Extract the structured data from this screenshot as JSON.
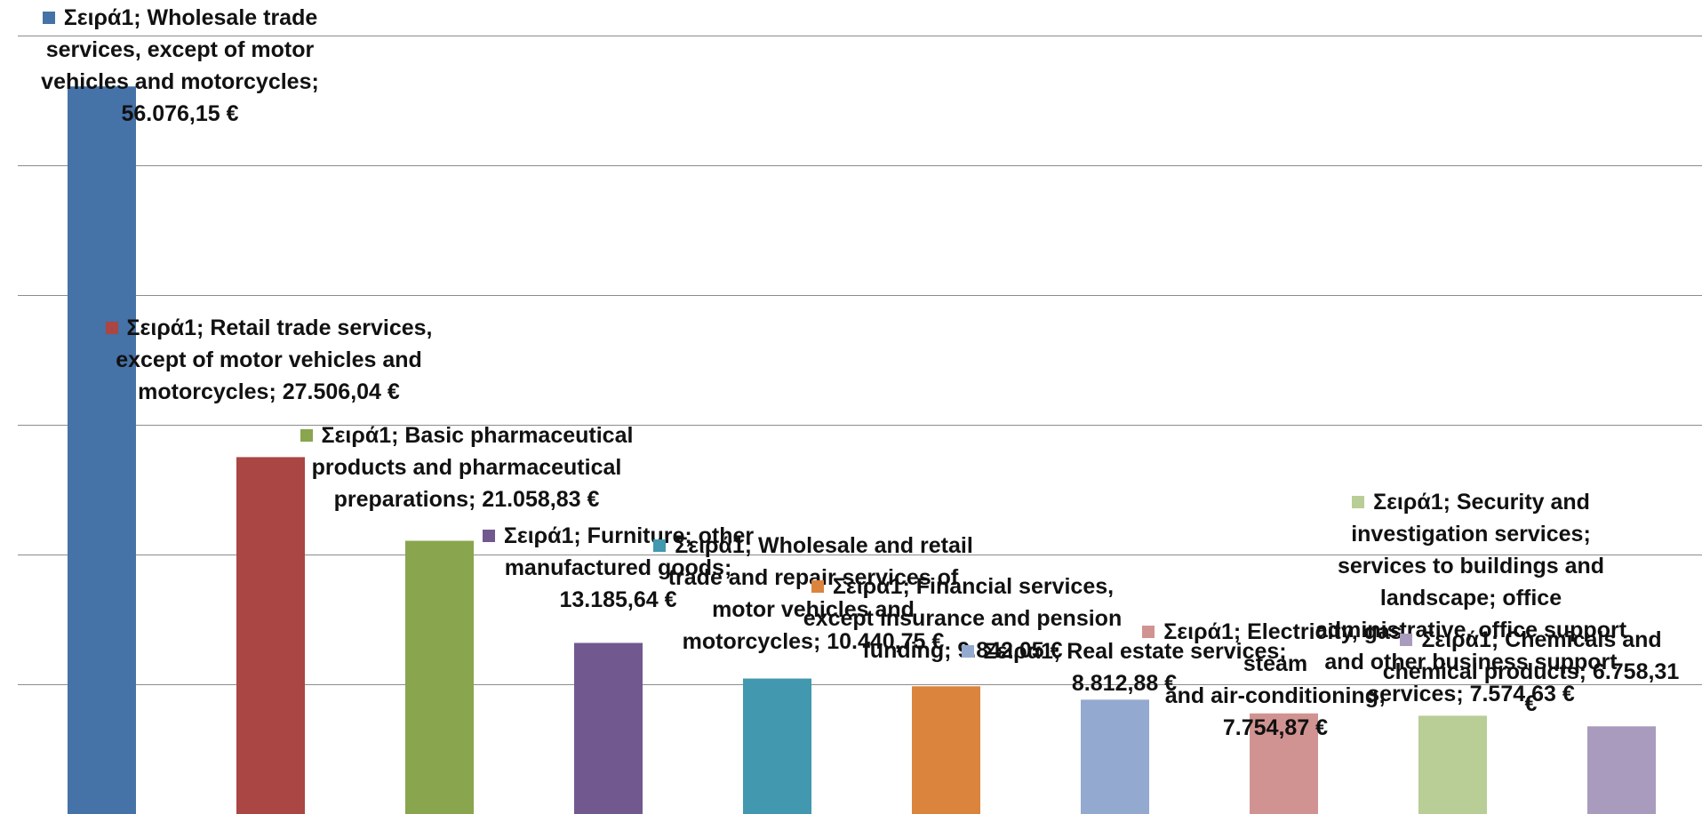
{
  "chart_data": {
    "type": "bar",
    "series_name": "Σειρά1",
    "grid": true,
    "legend": "none",
    "ylim": [
      0,
      60000
    ],
    "ytick_step": 10000,
    "categories": [
      "Wholesale trade services, except of motor vehicles and motorcycles",
      "Retail trade services, except of motor vehicles and motorcycles",
      "Basic pharmaceutical products and pharmaceutical preparations",
      "Furniture; other manufactured goods",
      "Wholesale and retail trade and repair services of motor vehicles and motorcycles",
      "Financial services, except insurance and pension funding",
      "Real estate services",
      "Electricity, gas, steam and air-conditioning",
      "Security and investigation services; services to buildings and landscape; office administrative, office support and other business support services",
      "Chemicals and chemical products"
    ],
    "values": [
      56076.15,
      27506.04,
      21058.83,
      13185.64,
      10440.75,
      9842.05,
      8812.88,
      7754.87,
      7574.63,
      6758.31
    ],
    "colors": [
      "#4572a7",
      "#aa4643",
      "#89a54e",
      "#71588f",
      "#4198af",
      "#db843d",
      "#93a9cf",
      "#d19392",
      "#b9cd96",
      "#a99bbd"
    ],
    "data_labels": [
      [
        "Σειρά1; Wholesale trade",
        "services, except of motor",
        "vehicles and motorcycles;",
        "56.076,15 €"
      ],
      [
        "Σειρά1; Retail trade services,",
        "except of motor vehicles and",
        "motorcycles;  27.506,04 €"
      ],
      [
        "Σειρά1; Basic pharmaceutical",
        "products and pharmaceutical",
        "preparations;  21.058,83 €"
      ],
      [
        "Σειρά1; Furniture; other",
        "manufactured goods;",
        "13.185,64 €"
      ],
      [
        "Σειρά1; Wholesale and retail",
        "trade and repair services of",
        "motor vehicles and",
        "motorcycles;  10.440,75 €"
      ],
      [
        "Σειρά1; Financial services,",
        "except insurance and pension",
        "funding;  9.842,05 €"
      ],
      [
        "Σειρά1; Real estate services;",
        "8.812,88 €"
      ],
      [
        "Σειρά1; Electricity, gas, steam",
        "and air-conditioning;",
        "7.754,87 €"
      ],
      [
        "Σειρά1; Security and",
        "investigation services;",
        "services to buildings and",
        "landscape; office",
        "administrative, office support",
        "and other business support",
        "services;  7.574,63 €"
      ],
      [
        "Σειρά1; Chemicals and",
        "chemical products;  6.758,31",
        "€"
      ]
    ]
  }
}
